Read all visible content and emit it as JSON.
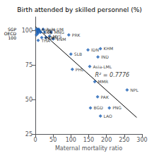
{
  "chart_data": {
    "type": "scatter",
    "title": "Birth attended by skilled personnel (%)",
    "xlabel": "Maternal mortality ratio",
    "xlim": [
      0,
      300
    ],
    "ylim": [
      25,
      110
    ],
    "xticks": [
      0,
      50,
      100,
      150,
      200,
      250,
      300
    ],
    "yticks": [
      25,
      50,
      75,
      100
    ],
    "grid": false,
    "color": "#1a5fb4",
    "marker": "diamond",
    "x": [
      8,
      22,
      15,
      26,
      44,
      94,
      40,
      18,
      29,
      50,
      8,
      148,
      183,
      176,
      100,
      153,
      104,
      167,
      258,
      175,
      155,
      208,
      183,
      3,
      5,
      3,
      6,
      8,
      10,
      12,
      14,
      7
    ],
    "y": [
      101,
      101,
      99,
      99,
      99,
      97,
      96,
      95,
      95,
      94,
      93,
      86,
      87,
      81,
      83,
      74,
      72,
      63,
      57,
      52,
      44,
      44,
      38,
      101,
      99,
      97,
      100,
      99,
      101,
      100,
      99,
      98
    ],
    "labels": [
      "Asia-H",
      "Asia-UM",
      "LKA",
      "FJI",
      "MNG",
      "PRK",
      "MYS",
      "BRN",
      "CHN",
      "VNM",
      "THA",
      "IDN",
      "KHM",
      "IND",
      "SLB",
      "Asia-LML",
      "PHL",
      "MMR",
      "NPL",
      "PAK",
      "BGD",
      "PNG",
      "LAO",
      null,
      null,
      null,
      null,
      null,
      null,
      null,
      null,
      null
    ],
    "trendline": {
      "x": [
        0,
        285
      ],
      "y": [
        103,
        37
      ],
      "color": "black"
    },
    "annotations": [
      {
        "text": "R² = 0.7776",
        "x": 168,
        "y": 68
      }
    ],
    "outside_labels": [
      {
        "text": "SGP",
        "y": 101
      },
      {
        "text": "OECD",
        "y": 99
      },
      {
        "text": "100",
        "y": 97
      }
    ]
  }
}
